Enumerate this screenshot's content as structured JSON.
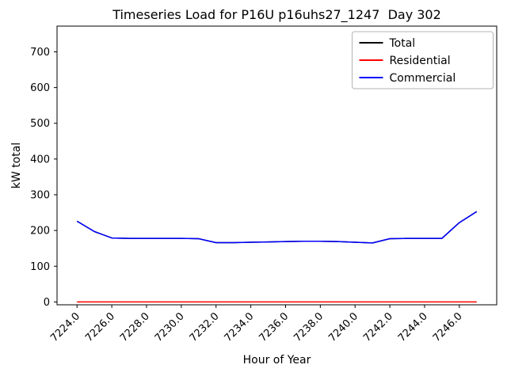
{
  "figure": {
    "title": "Timeseries Load for P16U p16uhs27_1247  Day 302",
    "xlabel": "Hour of Year",
    "ylabel": "kW total"
  },
  "chart_data": {
    "type": "line",
    "title": "Timeseries Load for P16U p16uhs27_1247  Day 302",
    "xlabel": "Hour of Year",
    "ylabel": "kW total",
    "x": [
      7224,
      7225,
      7226,
      7227,
      7228,
      7229,
      7230,
      7231,
      7232,
      7233,
      7234,
      7235,
      7236,
      7237,
      7238,
      7239,
      7240,
      7241,
      7242,
      7243,
      7244,
      7245,
      7246,
      7247
    ],
    "series": [
      {
        "name": "Total",
        "color": "#000000",
        "values": [
          226,
          197,
          179,
          178,
          178,
          178,
          178,
          177,
          166,
          166,
          167,
          168,
          169,
          170,
          170,
          169,
          167,
          165,
          177,
          178,
          178,
          178,
          222,
          253
        ]
      },
      {
        "name": "Residential",
        "color": "#ff0000",
        "values": [
          0,
          0,
          0,
          0,
          0,
          0,
          0,
          0,
          0,
          0,
          0,
          0,
          0,
          0,
          0,
          0,
          0,
          0,
          0,
          0,
          0,
          0,
          0,
          0
        ]
      },
      {
        "name": "Commercial",
        "color": "#0000ff",
        "values": [
          226,
          197,
          179,
          178,
          178,
          178,
          178,
          177,
          166,
          166,
          167,
          168,
          169,
          170,
          170,
          169,
          167,
          165,
          177,
          178,
          178,
          178,
          222,
          253
        ]
      }
    ],
    "xlim": [
      7222.85,
      7248.15
    ],
    "ylim": [
      -8,
      772
    ],
    "xticks": [
      7224,
      7226,
      7228,
      7230,
      7232,
      7234,
      7236,
      7238,
      7240,
      7242,
      7244,
      7246
    ],
    "xtick_labels": [
      "7224.0",
      "7226.0",
      "7228.0",
      "7230.0",
      "7232.0",
      "7234.0",
      "7236.0",
      "7238.0",
      "7240.0",
      "7242.0",
      "7244.0",
      "7246.0"
    ],
    "yticks": [
      0,
      100,
      200,
      300,
      400,
      500,
      600,
      700
    ],
    "ytick_labels": [
      "0",
      "100",
      "200",
      "300",
      "400",
      "500",
      "600",
      "700"
    ],
    "grid": false,
    "legend": {
      "position": "upper right",
      "entries": [
        "Total",
        "Residential",
        "Commercial"
      ]
    },
    "line_width": 1.5,
    "legend_border_color": "#b3b3b3",
    "axis_color": "#000000"
  }
}
